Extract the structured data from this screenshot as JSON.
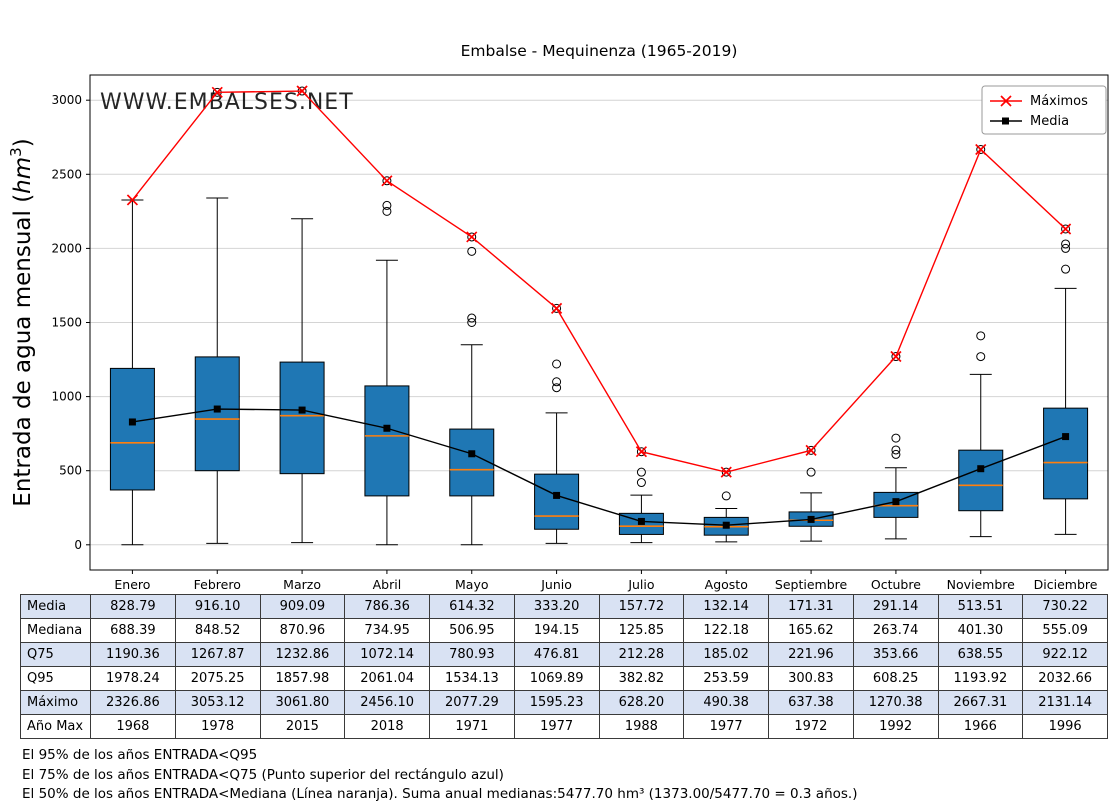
{
  "title": "Embalse - Mequinenza (1965-2019)",
  "watermark": "WWW.EMBALSES.NET",
  "ylabel": "Entrada de agua mensual (hm³)",
  "legend": [
    {
      "label": "Máximos",
      "color": "#ff0000",
      "marker": "x"
    },
    {
      "label": "Media",
      "color": "#000000",
      "marker": "square"
    }
  ],
  "chart_data": {
    "type": "boxplot",
    "title": "Embalse - Mequinenza (1965-2019)",
    "xlabel": "",
    "ylabel": "Entrada de agua mensual (hm³)",
    "grid": true,
    "legend_position": "upper right",
    "categories": [
      "Enero",
      "Febrero",
      "Marzo",
      "Abril",
      "Mayo",
      "Junio",
      "Julio",
      "Agosto",
      "Septiembre",
      "Octubre",
      "Noviembre",
      "Diciembre"
    ],
    "yticks": [
      0,
      500,
      1000,
      1500,
      2000,
      2500,
      3000
    ],
    "ylim": [
      -170,
      3170
    ],
    "series": [
      {
        "name": "Máximos",
        "type": "line",
        "color": "#ff0000",
        "marker": "x",
        "values": [
          2326.86,
          3053.12,
          3061.8,
          2456.1,
          2077.29,
          1595.23,
          628.2,
          490.38,
          637.38,
          1270.38,
          2667.31,
          2131.14
        ]
      },
      {
        "name": "Media",
        "type": "line",
        "color": "#000000",
        "marker": "square",
        "values": [
          828.79,
          916.1,
          909.09,
          786.36,
          614.32,
          333.2,
          157.72,
          132.14,
          171.31,
          291.14,
          513.51,
          730.22
        ]
      }
    ],
    "boxplot": {
      "box_color": "#1f77b4",
      "median_color": "#ff7f0e",
      "q1": [
        370,
        500,
        480,
        330,
        330,
        105,
        70,
        65,
        125,
        185,
        230,
        310
      ],
      "median": [
        688.39,
        848.52,
        870.96,
        734.95,
        506.95,
        194.15,
        125.85,
        122.18,
        165.62,
        263.74,
        401.3,
        555.09
      ],
      "q3": [
        1190.36,
        1267.87,
        1232.86,
        1072.14,
        780.93,
        476.81,
        212.28,
        185.02,
        221.96,
        353.66,
        638.55,
        922.12
      ],
      "whisker_low": [
        0,
        10,
        15,
        0,
        0,
        10,
        15,
        20,
        25,
        40,
        55,
        70
      ],
      "whisker_high": [
        2326.86,
        2340,
        2200,
        1920,
        1350,
        890,
        335,
        245,
        350,
        520,
        1150,
        1730
      ],
      "outliers": [
        [],
        [
          3053.12
        ],
        [
          3061.8
        ],
        [
          2250,
          2290,
          2456.1
        ],
        [
          1500,
          1530,
          1980,
          2077.29
        ],
        [
          1060,
          1100,
          1220,
          1595.23
        ],
        [
          420,
          490,
          628.2
        ],
        [
          330,
          490.38
        ],
        [
          490,
          637.38
        ],
        [
          610,
          640,
          720,
          1270.38
        ],
        [
          1270,
          1410,
          2667.31
        ],
        [
          1860,
          2000,
          2030,
          2131.14
        ]
      ]
    }
  },
  "table": {
    "row_colors": [
      "#d9e2f3",
      "#ffffff",
      "#d9e2f3",
      "#ffffff",
      "#d9e2f3",
      "#ffffff"
    ],
    "rows": [
      {
        "label": "Media",
        "values": [
          "828.79",
          "916.10",
          "909.09",
          "786.36",
          "614.32",
          "333.20",
          "157.72",
          "132.14",
          "171.31",
          "291.14",
          "513.51",
          "730.22"
        ]
      },
      {
        "label": "Mediana",
        "values": [
          "688.39",
          "848.52",
          "870.96",
          "734.95",
          "506.95",
          "194.15",
          "125.85",
          "122.18",
          "165.62",
          "263.74",
          "401.30",
          "555.09"
        ]
      },
      {
        "label": "Q75",
        "values": [
          "1190.36",
          "1267.87",
          "1232.86",
          "1072.14",
          "780.93",
          "476.81",
          "212.28",
          "185.02",
          "221.96",
          "353.66",
          "638.55",
          "922.12"
        ]
      },
      {
        "label": "Q95",
        "values": [
          "1978.24",
          "2075.25",
          "1857.98",
          "2061.04",
          "1534.13",
          "1069.89",
          "382.82",
          "253.59",
          "300.83",
          "608.25",
          "1193.92",
          "2032.66"
        ]
      },
      {
        "label": "Máximo",
        "values": [
          "2326.86",
          "3053.12",
          "3061.80",
          "2456.10",
          "2077.29",
          "1595.23",
          "628.20",
          "490.38",
          "637.38",
          "1270.38",
          "2667.31",
          "2131.14"
        ]
      },
      {
        "label": "Año Max",
        "values": [
          "1968",
          "1978",
          "2015",
          "2018",
          "1971",
          "1977",
          "1988",
          "1977",
          "1972",
          "1992",
          "1966",
          "1996"
        ]
      }
    ]
  },
  "footer": {
    "lines": [
      "El 95% de los años ENTRADA<Q95",
      "El 75% de los años ENTRADA<Q75 (Punto superior del rectángulo azul)",
      "El 50% de los años ENTRADA<Mediana (Línea naranja). Suma anual medianas:5477.70 hm³ (1373.00/5477.70 = 0.3 años.)"
    ]
  }
}
